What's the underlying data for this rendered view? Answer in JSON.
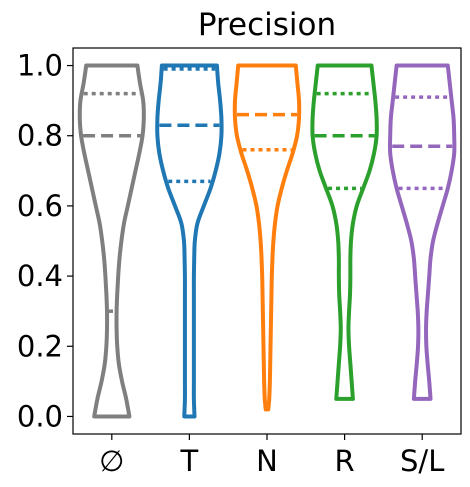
{
  "chart_data": {
    "type": "violin",
    "title": "Precision",
    "xlabel": "",
    "ylabel": "",
    "ylim": [
      -0.05,
      1.05
    ],
    "y_ticks": [
      "0.0",
      "0.2",
      "0.4",
      "0.6",
      "0.8",
      "1.0"
    ],
    "y_tick_values": [
      0.0,
      0.2,
      0.4,
      0.6,
      0.8,
      1.0
    ],
    "grid": false,
    "categories": [
      "∅",
      "T",
      "N",
      "R",
      "S/L"
    ],
    "violins": [
      {
        "category": "∅",
        "color": "#7f7f7f",
        "min": 0.0,
        "max": 1.0,
        "q1": 0.3,
        "median": 0.8,
        "q3": 0.92,
        "profile": [
          [
            0.0,
            0.55
          ],
          [
            0.05,
            0.45
          ],
          [
            0.1,
            0.32
          ],
          [
            0.15,
            0.22
          ],
          [
            0.2,
            0.17
          ],
          [
            0.25,
            0.15
          ],
          [
            0.3,
            0.15
          ],
          [
            0.35,
            0.17
          ],
          [
            0.4,
            0.2
          ],
          [
            0.45,
            0.24
          ],
          [
            0.5,
            0.3
          ],
          [
            0.55,
            0.38
          ],
          [
            0.6,
            0.5
          ],
          [
            0.65,
            0.62
          ],
          [
            0.7,
            0.74
          ],
          [
            0.75,
            0.86
          ],
          [
            0.8,
            0.96
          ],
          [
            0.85,
            1.0
          ],
          [
            0.9,
            0.98
          ],
          [
            0.95,
            0.88
          ],
          [
            1.0,
            0.8
          ]
        ]
      },
      {
        "category": "T",
        "color": "#1f77b4",
        "min": 0.0,
        "max": 1.0,
        "q1": 0.67,
        "median": 0.83,
        "q3": 0.99,
        "profile": [
          [
            0.0,
            0.16
          ],
          [
            0.05,
            0.14
          ],
          [
            0.1,
            0.14
          ],
          [
            0.15,
            0.14
          ],
          [
            0.2,
            0.14
          ],
          [
            0.25,
            0.14
          ],
          [
            0.3,
            0.14
          ],
          [
            0.35,
            0.14
          ],
          [
            0.4,
            0.14
          ],
          [
            0.45,
            0.15
          ],
          [
            0.5,
            0.17
          ],
          [
            0.55,
            0.25
          ],
          [
            0.6,
            0.45
          ],
          [
            0.65,
            0.66
          ],
          [
            0.7,
            0.82
          ],
          [
            0.75,
            0.94
          ],
          [
            0.8,
            1.0
          ],
          [
            0.85,
            1.0
          ],
          [
            0.9,
            0.96
          ],
          [
            0.95,
            0.9
          ],
          [
            1.0,
            0.86
          ]
        ]
      },
      {
        "category": "N",
        "color": "#ff7f0e",
        "min": 0.02,
        "max": 1.0,
        "q1": 0.76,
        "median": 0.86,
        "q3": 1.0,
        "profile": [
          [
            0.02,
            0.04
          ],
          [
            0.05,
            0.07
          ],
          [
            0.1,
            0.09
          ],
          [
            0.15,
            0.1
          ],
          [
            0.2,
            0.11
          ],
          [
            0.25,
            0.12
          ],
          [
            0.3,
            0.13
          ],
          [
            0.35,
            0.14
          ],
          [
            0.4,
            0.15
          ],
          [
            0.45,
            0.17
          ],
          [
            0.5,
            0.2
          ],
          [
            0.55,
            0.25
          ],
          [
            0.6,
            0.33
          ],
          [
            0.65,
            0.46
          ],
          [
            0.7,
            0.62
          ],
          [
            0.75,
            0.8
          ],
          [
            0.8,
            0.94
          ],
          [
            0.85,
            1.0
          ],
          [
            0.9,
            1.0
          ],
          [
            0.95,
            0.95
          ],
          [
            1.0,
            0.9
          ]
        ]
      },
      {
        "category": "R",
        "color": "#2ca02c",
        "min": 0.05,
        "max": 1.0,
        "q1": 0.65,
        "median": 0.8,
        "q3": 0.92,
        "profile": [
          [
            0.05,
            0.26
          ],
          [
            0.1,
            0.22
          ],
          [
            0.15,
            0.18
          ],
          [
            0.2,
            0.14
          ],
          [
            0.25,
            0.12
          ],
          [
            0.3,
            0.14
          ],
          [
            0.35,
            0.17
          ],
          [
            0.4,
            0.18
          ],
          [
            0.45,
            0.18
          ],
          [
            0.5,
            0.2
          ],
          [
            0.55,
            0.26
          ],
          [
            0.6,
            0.38
          ],
          [
            0.65,
            0.58
          ],
          [
            0.7,
            0.78
          ],
          [
            0.75,
            0.92
          ],
          [
            0.8,
            1.0
          ],
          [
            0.85,
            1.0
          ],
          [
            0.9,
            0.96
          ],
          [
            0.95,
            0.9
          ],
          [
            1.0,
            0.84
          ]
        ]
      },
      {
        "category": "S/L",
        "color": "#9467bd",
        "min": 0.05,
        "max": 1.0,
        "q1": 0.65,
        "median": 0.77,
        "q3": 0.91,
        "profile": [
          [
            0.05,
            0.26
          ],
          [
            0.1,
            0.22
          ],
          [
            0.15,
            0.17
          ],
          [
            0.2,
            0.13
          ],
          [
            0.25,
            0.12
          ],
          [
            0.3,
            0.14
          ],
          [
            0.35,
            0.18
          ],
          [
            0.4,
            0.22
          ],
          [
            0.45,
            0.26
          ],
          [
            0.5,
            0.34
          ],
          [
            0.55,
            0.48
          ],
          [
            0.6,
            0.64
          ],
          [
            0.65,
            0.8
          ],
          [
            0.7,
            0.92
          ],
          [
            0.75,
            1.0
          ],
          [
            0.8,
            1.0
          ],
          [
            0.85,
            0.98
          ],
          [
            0.9,
            0.92
          ],
          [
            0.95,
            0.86
          ],
          [
            1.0,
            0.8
          ]
        ]
      }
    ]
  }
}
